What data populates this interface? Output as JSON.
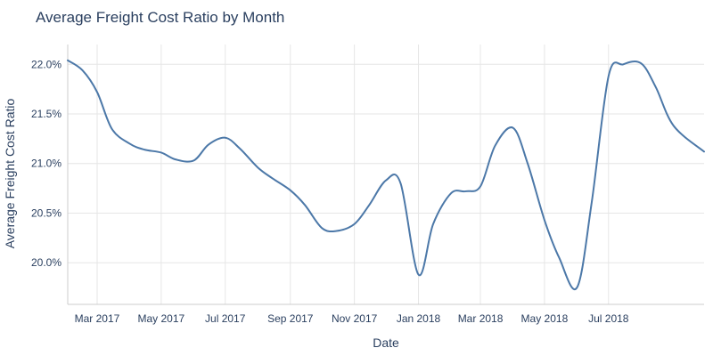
{
  "chart_data": {
    "type": "line",
    "title": "Average Freight Cost Ratio by Month",
    "xlabel": "Date",
    "ylabel": "Average Freight Cost Ratio",
    "x_range": [
      "2017-02-01",
      "2018-09-30"
    ],
    "ylim": [
      0.1958,
      0.222
    ],
    "grid": true,
    "x_ticks": [
      {
        "date": "2017-03-01",
        "label": "Mar 2017"
      },
      {
        "date": "2017-05-01",
        "label": "May 2017"
      },
      {
        "date": "2017-07-01",
        "label": "Jul 2017"
      },
      {
        "date": "2017-09-01",
        "label": "Sep 2017"
      },
      {
        "date": "2017-11-01",
        "label": "Nov 2017"
      },
      {
        "date": "2018-01-01",
        "label": "Jan 2018"
      },
      {
        "date": "2018-03-01",
        "label": "Mar 2018"
      },
      {
        "date": "2018-05-01",
        "label": "May 2018"
      },
      {
        "date": "2018-07-01",
        "label": "Jul 2018"
      }
    ],
    "y_ticks": [
      {
        "value": 0.2,
        "label": "20.0%"
      },
      {
        "value": 0.205,
        "label": "20.5%"
      },
      {
        "value": 0.21,
        "label": "21.0%"
      },
      {
        "value": 0.215,
        "label": "21.5%"
      },
      {
        "value": 0.22,
        "label": "22.0%"
      }
    ],
    "series": [
      {
        "color": "#4c78a8",
        "points": [
          {
            "x": "2017-02-01",
            "y": 0.2204
          },
          {
            "x": "2017-02-15",
            "y": 0.2194
          },
          {
            "x": "2017-03-01",
            "y": 0.2172
          },
          {
            "x": "2017-03-15",
            "y": 0.2135
          },
          {
            "x": "2017-04-01",
            "y": 0.212
          },
          {
            "x": "2017-04-15",
            "y": 0.2114
          },
          {
            "x": "2017-05-01",
            "y": 0.2111
          },
          {
            "x": "2017-05-15",
            "y": 0.2104
          },
          {
            "x": "2017-06-01",
            "y": 0.2103
          },
          {
            "x": "2017-06-15",
            "y": 0.2119
          },
          {
            "x": "2017-07-01",
            "y": 0.2126
          },
          {
            "x": "2017-07-15",
            "y": 0.2115
          },
          {
            "x": "2017-08-01",
            "y": 0.2096
          },
          {
            "x": "2017-08-15",
            "y": 0.2085
          },
          {
            "x": "2017-09-01",
            "y": 0.2073
          },
          {
            "x": "2017-09-15",
            "y": 0.2058
          },
          {
            "x": "2017-10-01",
            "y": 0.2035
          },
          {
            "x": "2017-10-15",
            "y": 0.2032
          },
          {
            "x": "2017-11-01",
            "y": 0.2039
          },
          {
            "x": "2017-11-15",
            "y": 0.2058
          },
          {
            "x": "2017-12-01",
            "y": 0.2083
          },
          {
            "x": "2017-12-15",
            "y": 0.208
          },
          {
            "x": "2018-01-01",
            "y": 0.1988
          },
          {
            "x": "2018-01-15",
            "y": 0.2039
          },
          {
            "x": "2018-02-01",
            "y": 0.207
          },
          {
            "x": "2018-02-15",
            "y": 0.2072
          },
          {
            "x": "2018-03-01",
            "y": 0.2077
          },
          {
            "x": "2018-03-15",
            "y": 0.2118
          },
          {
            "x": "2018-04-01",
            "y": 0.2136
          },
          {
            "x": "2018-04-15",
            "y": 0.21
          },
          {
            "x": "2018-05-01",
            "y": 0.2043
          },
          {
            "x": "2018-05-15",
            "y": 0.2005
          },
          {
            "x": "2018-06-01",
            "y": 0.1975
          },
          {
            "x": "2018-06-15",
            "y": 0.2061
          },
          {
            "x": "2018-07-01",
            "y": 0.2188
          },
          {
            "x": "2018-07-15",
            "y": 0.22
          },
          {
            "x": "2018-08-01",
            "y": 0.2201
          },
          {
            "x": "2018-08-15",
            "y": 0.2177
          },
          {
            "x": "2018-09-01",
            "y": 0.2138
          },
          {
            "x": "2018-09-30",
            "y": 0.2112
          }
        ]
      }
    ]
  },
  "colors": {
    "background": "#ffffff",
    "grid": "#e6e6e6",
    "axis_line": "#cccccc",
    "text": "#2a3f5f",
    "series": "#4c78a8"
  }
}
